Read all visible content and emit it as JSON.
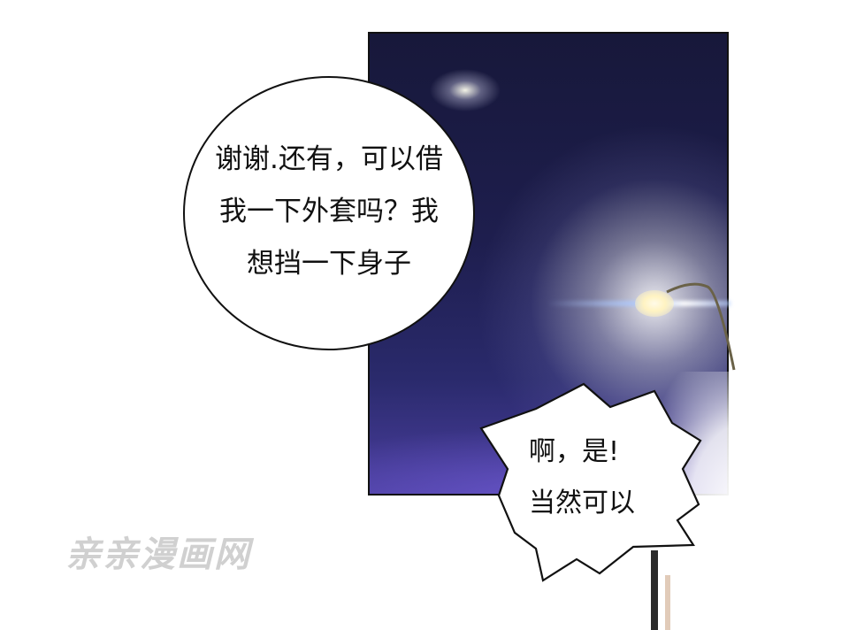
{
  "speech_bubbles": {
    "round": {
      "lines": [
        "谢谢.还有，可以借",
        "我一下外套吗？我",
        "想挡一下身子"
      ]
    },
    "spiky": {
      "lines": [
        "啊，是!",
        "当然可以"
      ]
    }
  },
  "watermark": {
    "text": "亲亲漫画网"
  },
  "colors": {
    "night_sky": "#1e1e4e",
    "bubble_fill": "#ffffff",
    "outline": "#111111",
    "watermark": "#d0d0d0"
  }
}
